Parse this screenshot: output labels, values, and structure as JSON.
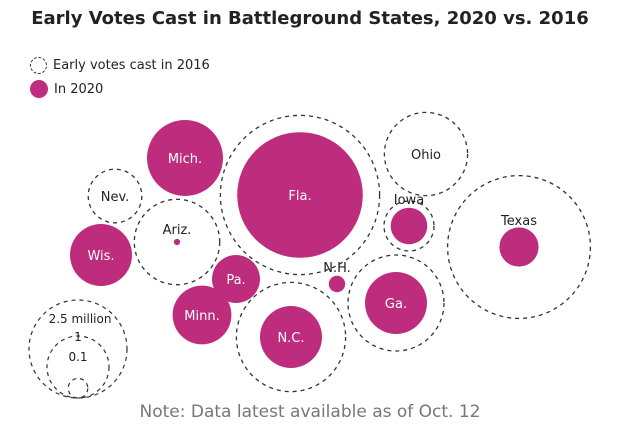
{
  "chart_data": {
    "type": "bubble",
    "title": "Early Votes Cast in Battleground States, 2020 vs. 2016",
    "legend": [
      {
        "label": "Early votes cast in 2016",
        "style": "dashed-outline"
      },
      {
        "label": "In 2020",
        "style": "filled",
        "color": "#be2d7d"
      }
    ],
    "size_scale": {
      "unit": "million votes",
      "labels": [
        "2.5 million",
        "1",
        "0.1"
      ],
      "values": [
        2.5,
        1,
        0.1
      ]
    },
    "states": [
      {
        "name": "Mich.",
        "early_2016": 0.95,
        "early_2020": 1.5
      },
      {
        "name": "Fla.",
        "early_2016": 6.6,
        "early_2020": 4.1
      },
      {
        "name": "Ohio",
        "early_2016": 1.8,
        "early_2020": 0
      },
      {
        "name": "Nev.",
        "early_2016": 0.75,
        "early_2020": 0
      },
      {
        "name": "Ariz.",
        "early_2016": 1.9,
        "early_2020": 0.01
      },
      {
        "name": "Wis.",
        "early_2016": 0.8,
        "early_2020": 1.0
      },
      {
        "name": "Iowa",
        "early_2016": 0.65,
        "early_2020": 0.35
      },
      {
        "name": "Texas",
        "early_2016": 5.3,
        "early_2020": 0.4
      },
      {
        "name": "Pa.",
        "early_2016": 0.3,
        "early_2020": 0.6
      },
      {
        "name": "N.H.",
        "early_2016": 0.05,
        "early_2020": 0.07
      },
      {
        "name": "Ga.",
        "early_2016": 2.4,
        "early_2020": 1.0
      },
      {
        "name": "Minn.",
        "early_2016": 0.65,
        "early_2020": 0.9
      },
      {
        "name": "N.C.",
        "early_2016": 3.1,
        "early_2020": 1.0
      }
    ]
  },
  "note": "Note: Data latest available as of Oct. 12",
  "colors": {
    "accent": "#be2d7d",
    "ring": "#333333",
    "note": "#777777"
  }
}
